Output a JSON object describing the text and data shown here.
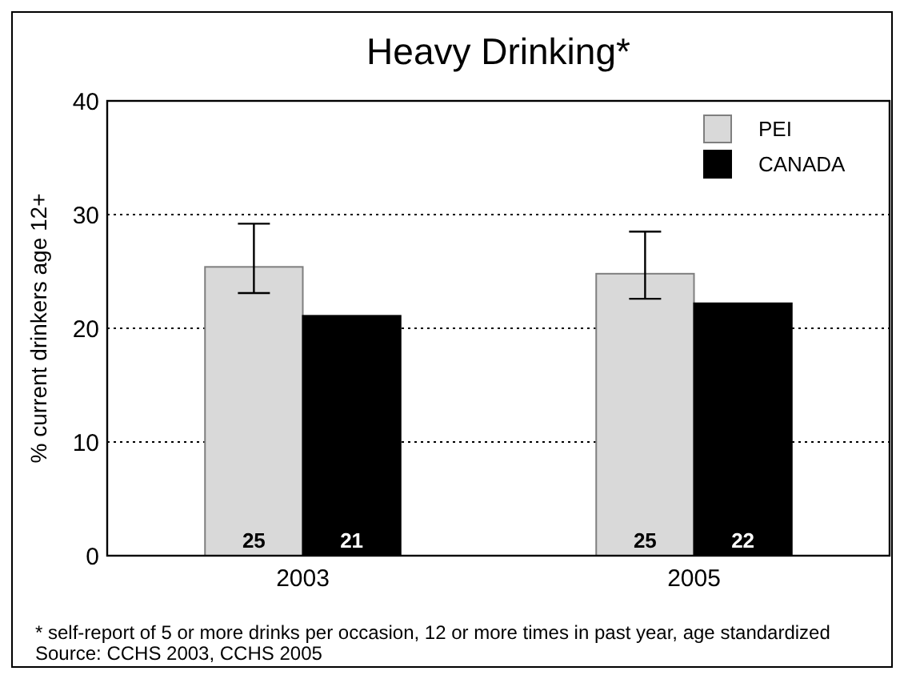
{
  "chart_data": {
    "type": "bar",
    "title": "Heavy Drinking*",
    "ylabel": "% current drinkers age 12+",
    "categories": [
      "2003",
      "2005"
    ],
    "series": [
      {
        "name": "PEI",
        "color": "#d9d9d9",
        "values": [
          25.4,
          24.8
        ],
        "errors": [
          [
            23.1,
            29.2
          ],
          [
            22.6,
            28.5
          ]
        ],
        "value_labels": [
          "25",
          "25"
        ]
      },
      {
        "name": "CANADA",
        "color": "#000000",
        "values": [
          21.1,
          22.2
        ],
        "value_labels": [
          "21",
          "22"
        ]
      }
    ],
    "ylim": [
      0,
      40
    ],
    "yticks": [
      0,
      10,
      20,
      30,
      40
    ],
    "grid": "y",
    "legend": "top right",
    "annotations": [
      "* self-report of 5 or more drinks per occasion, 12 or more times  in past year, age standardized",
      "Source: CCHS 2003, CCHS 2005"
    ]
  }
}
